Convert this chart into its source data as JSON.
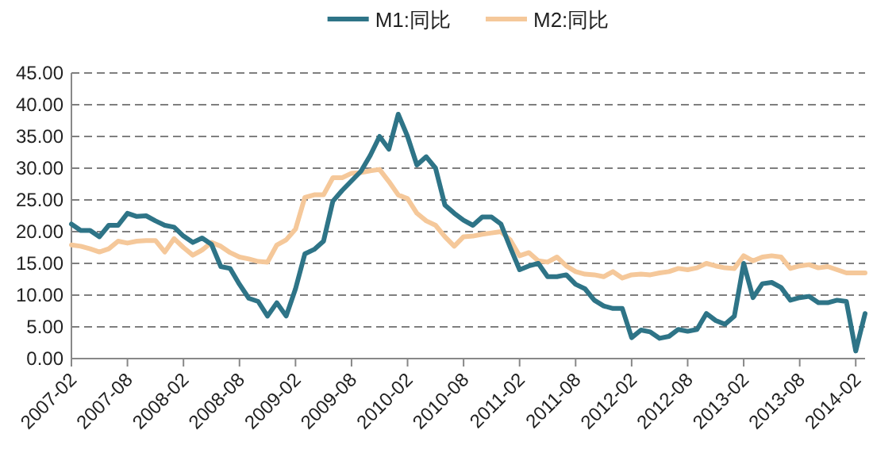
{
  "chart_data": {
    "type": "line",
    "legend": "top",
    "grid": "y",
    "line_style": "solid",
    "x": [
      "2007-02",
      "2007-03",
      "2007-04",
      "2007-05",
      "2007-06",
      "2007-07",
      "2007-08",
      "2007-09",
      "2007-10",
      "2007-11",
      "2007-12",
      "2008-01",
      "2008-02",
      "2008-03",
      "2008-04",
      "2008-05",
      "2008-06",
      "2008-07",
      "2008-08",
      "2008-09",
      "2008-10",
      "2008-11",
      "2008-12",
      "2009-01",
      "2009-02",
      "2009-03",
      "2009-04",
      "2009-05",
      "2009-06",
      "2009-07",
      "2009-08",
      "2009-09",
      "2009-10",
      "2009-11",
      "2009-12",
      "2010-01",
      "2010-02",
      "2010-03",
      "2010-04",
      "2010-05",
      "2010-06",
      "2010-07",
      "2010-08",
      "2010-09",
      "2010-10",
      "2010-11",
      "2010-12",
      "2011-01",
      "2011-02",
      "2011-03",
      "2011-04",
      "2011-05",
      "2011-06",
      "2011-07",
      "2011-08",
      "2011-09",
      "2011-10",
      "2011-11",
      "2011-12",
      "2012-01",
      "2012-02",
      "2012-03",
      "2012-04",
      "2012-05",
      "2012-06",
      "2012-07",
      "2012-08",
      "2012-09",
      "2012-10",
      "2012-11",
      "2012-12",
      "2013-01",
      "2013-02",
      "2013-03",
      "2013-04",
      "2013-05",
      "2013-06",
      "2013-07",
      "2013-08",
      "2013-09",
      "2013-10",
      "2013-11",
      "2013-12",
      "2014-01",
      "2014-02",
      "2014-03"
    ],
    "series": [
      {
        "name": "M1:同比",
        "color": "#2e7487",
        "values": [
          21.2,
          20.2,
          20.2,
          19.2,
          21,
          21,
          22.9,
          22.4,
          22.5,
          21.7,
          21,
          20.7,
          19.3,
          18.3,
          19,
          18,
          14.5,
          14.2,
          11.7,
          9.5,
          9,
          6.7,
          8.8,
          6.7,
          11,
          16.5,
          17.2,
          18.5,
          24.8,
          26.5,
          28,
          29.5,
          32,
          35,
          33,
          38.5,
          35,
          30.5,
          31.8,
          30,
          24.2,
          22.9,
          21.8,
          21,
          22.3,
          22.3,
          21.2,
          17.5,
          14,
          14.6,
          15,
          12.9,
          12.9,
          13.2,
          11.7,
          11,
          9.2,
          8.3,
          7.9,
          7.9,
          3.3,
          4.5,
          4.2,
          3.2,
          3.5,
          4.6,
          4.3,
          4.6,
          7.1,
          6,
          5.4,
          6.7,
          15,
          9.6,
          11.8,
          12,
          11.2,
          9.2,
          9.6,
          9.8,
          8.8,
          8.8,
          9.2,
          9,
          1.2,
          7.1
        ]
      },
      {
        "name": "M2:同比",
        "color": "#f5c89a",
        "values": [
          17.9,
          17.7,
          17.3,
          16.8,
          17.3,
          18.5,
          18.2,
          18.5,
          18.6,
          18.6,
          16.8,
          18.9,
          17.5,
          16.3,
          17.1,
          18.3,
          17.7,
          16.7,
          16,
          15.7,
          15.3,
          15.2,
          17.9,
          18.7,
          20.4,
          25.4,
          25.8,
          25.8,
          28.5,
          28.5,
          29.2,
          29.3,
          29.6,
          29.8,
          27.9,
          25.8,
          25.2,
          22.9,
          21.7,
          21,
          19.2,
          17.7,
          19.2,
          19.3,
          19.6,
          19.8,
          20,
          18.7,
          16.2,
          16.7,
          15.4,
          15.2,
          16,
          14.6,
          13.7,
          13.3,
          13.2,
          12.9,
          13.7,
          12.7,
          13.2,
          13.3,
          13.2,
          13.5,
          13.7,
          14.2,
          14,
          14.3,
          15,
          14.6,
          14.3,
          14.2,
          16.2,
          15.4,
          16,
          16.2,
          16,
          14.2,
          14.6,
          14.8,
          14.3,
          14.5,
          14,
          13.5,
          13.5,
          13.5
        ]
      }
    ],
    "xlim": [
      "2007-02",
      "2014-03"
    ],
    "xticks": [
      "2007-02",
      "2007-08",
      "2008-02",
      "2008-08",
      "2009-02",
      "2009-08",
      "2010-02",
      "2010-08",
      "2011-02",
      "2011-08",
      "2012-02",
      "2012-08",
      "2013-02",
      "2013-08",
      "2014-02"
    ],
    "ylim": [
      0,
      45
    ],
    "yticks": [
      {
        "value": 0,
        "label": "0.00"
      },
      {
        "value": 5,
        "label": "5.00"
      },
      {
        "value": 10,
        "label": "10.00"
      },
      {
        "value": 15,
        "label": "15.00"
      },
      {
        "value": 20,
        "label": "20.00"
      },
      {
        "value": 25,
        "label": "25.00"
      },
      {
        "value": 30,
        "label": "30.00"
      },
      {
        "value": 35,
        "label": "35.00"
      },
      {
        "value": 40,
        "label": "40.00"
      },
      {
        "value": 45,
        "label": "45.00"
      }
    ]
  }
}
